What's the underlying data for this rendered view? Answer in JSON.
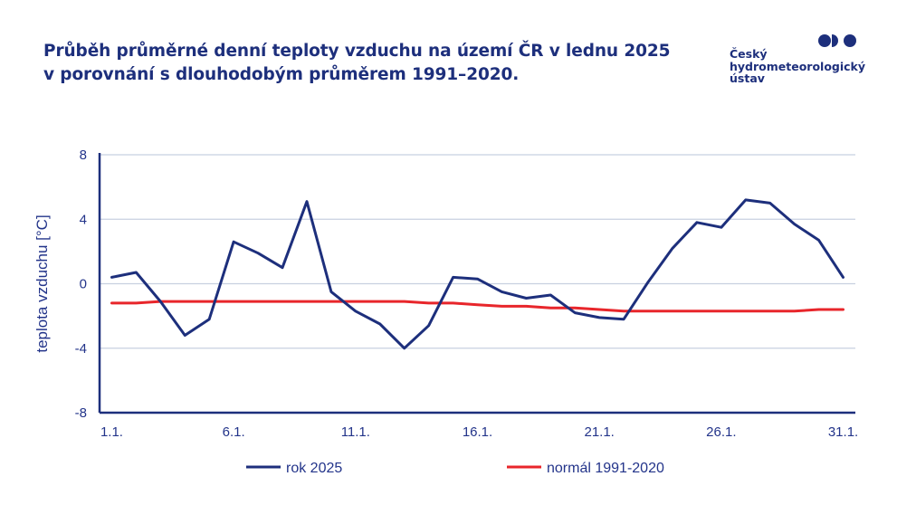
{
  "header": {
    "title_line1": "Průběh průměrné denní teploty vzduchu na území ČR v lednu 2025",
    "title_line2": "v porovnání s dlouhodobým průměrem 1991–2020."
  },
  "logo": {
    "line1": "Český",
    "line2": "hydrometeorologický",
    "line3": "ústav"
  },
  "colors": {
    "series_2025": "#1d2f7c",
    "series_normal": "#e8262b",
    "axis": "#1d2f7c",
    "grid": "#c8d0e0",
    "text": "#23348a"
  },
  "chart_data": {
    "type": "line",
    "ylabel": "teplota vzduchu [°C]",
    "xlabel": "",
    "ylim": [
      -8,
      8
    ],
    "yticks": [
      "8",
      "4",
      "0",
      "-4",
      "-8"
    ],
    "x": [
      1,
      2,
      3,
      4,
      5,
      6,
      7,
      8,
      9,
      10,
      11,
      12,
      13,
      14,
      15,
      16,
      17,
      18,
      19,
      20,
      21,
      22,
      23,
      24,
      25,
      26,
      27,
      28,
      29,
      30,
      31
    ],
    "xtick_labels": [
      "1.1.",
      "6.1.",
      "11.1.",
      "16.1.",
      "21.1.",
      "26.1.",
      "31.1."
    ],
    "xtick_days": [
      1,
      6,
      11,
      16,
      21,
      26,
      31
    ],
    "grid": true,
    "legend_position": "bottom",
    "series": [
      {
        "name": "rok 2025",
        "values": [
          0.4,
          0.7,
          -1.1,
          -3.2,
          -2.2,
          2.6,
          1.9,
          1.0,
          5.1,
          -0.5,
          -1.7,
          -2.5,
          -4.0,
          -2.6,
          0.4,
          0.3,
          -0.5,
          -0.9,
          -0.7,
          -1.8,
          -2.1,
          -2.2,
          0.1,
          2.2,
          3.8,
          3.5,
          5.2,
          5.0,
          3.7,
          2.7,
          0.4
        ]
      },
      {
        "name": "normál 1991-2020",
        "values": [
          -1.2,
          -1.2,
          -1.1,
          -1.1,
          -1.1,
          -1.1,
          -1.1,
          -1.1,
          -1.1,
          -1.1,
          -1.1,
          -1.1,
          -1.1,
          -1.2,
          -1.2,
          -1.3,
          -1.4,
          -1.4,
          -1.5,
          -1.5,
          -1.6,
          -1.7,
          -1.7,
          -1.7,
          -1.7,
          -1.7,
          -1.7,
          -1.7,
          -1.7,
          -1.6,
          -1.6
        ]
      }
    ]
  }
}
